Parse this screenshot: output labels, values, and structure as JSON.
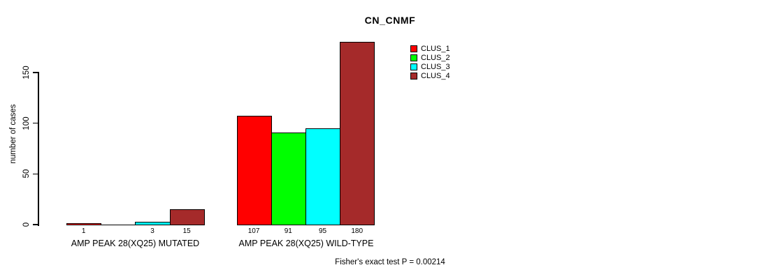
{
  "chart_data": {
    "type": "bar",
    "title": "CN_CNMF",
    "ylabel": "number of cases",
    "xlabel": "",
    "ylim": [
      0,
      150
    ],
    "yticks": [
      0,
      50,
      100,
      150
    ],
    "grid": false,
    "legend_position": "top-right",
    "background_color": "#FFFFFF",
    "axis_color": "#000000",
    "categories": [
      "AMP PEAK 28(XQ25) MUTATED",
      "AMP PEAK 28(XQ25) WILD-TYPE"
    ],
    "series": [
      {
        "name": "CLUS_1",
        "color": "#FF0000",
        "values": [
          1,
          107
        ]
      },
      {
        "name": "CLUS_2",
        "color": "#00FF00",
        "values": [
          0,
          91
        ]
      },
      {
        "name": "CLUS_3",
        "color": "#00FFFF",
        "values": [
          3,
          95
        ]
      },
      {
        "name": "CLUS_4",
        "color": "#A52A2A",
        "values": [
          15,
          180
        ]
      }
    ],
    "bar_value_labels": [
      [
        "1",
        "",
        "3",
        "15"
      ],
      [
        "107",
        "91",
        "95",
        "180"
      ]
    ],
    "annotation": "Fisher's exact test P = 0.00214"
  }
}
